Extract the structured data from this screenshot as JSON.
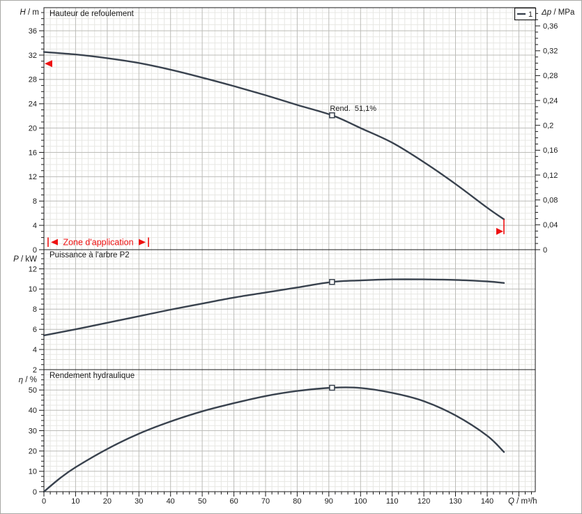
{
  "colors": {
    "curve": "#39424e",
    "grid_minor": "#e7e7e3",
    "grid_major": "#bcbcb8",
    "axis": "#1a1a1a",
    "accent_red": "#ee1111",
    "background": "#ffffff",
    "text": "#1a1a1a"
  },
  "legend": {
    "series_label": "1",
    "position": "top-right"
  },
  "x_axis": {
    "label": "Q / m³/h",
    "symbol": "Q",
    "unit": " / m³/h",
    "min": 0,
    "max": 155.2,
    "major_step": 10,
    "minor_step": 2,
    "tick_labels": [
      "0",
      "10",
      "20",
      "30",
      "40",
      "50",
      "60",
      "70",
      "80",
      "90",
      "100",
      "110",
      "120",
      "130",
      "140"
    ]
  },
  "chart_data": [
    {
      "type": "line",
      "title": "Hauteur de refoulement",
      "ylabel": "H / m",
      "ylabel_symbol": "H",
      "ylabel_unit": " / m",
      "y2label": "Δp / MPa",
      "y2label_symbol": "Δp",
      "y2label_unit": " / MPa",
      "ylim": [
        0,
        39.8
      ],
      "yticks": [
        0,
        4,
        8,
        12,
        16,
        20,
        24,
        28,
        32,
        36
      ],
      "y_minor_step": 1,
      "y2lim": [
        0,
        0.3893
      ],
      "y2tick_values": [
        0,
        0.04,
        0.08,
        0.12,
        0.16,
        0.2,
        0.24,
        0.28,
        0.32,
        0.36
      ],
      "y2tick_labels": [
        "0",
        "0,04",
        "0,08",
        "0,12",
        "0,16",
        "0,2",
        "0,24",
        "0,28",
        "0,32",
        "0,36"
      ],
      "y2_minor_step": 0.01,
      "grid": true,
      "series": [
        {
          "name": "1",
          "points": [
            [
              0,
              32.5
            ],
            [
              10,
              32.1
            ],
            [
              20,
              31.5
            ],
            [
              30,
              30.7
            ],
            [
              40,
              29.6
            ],
            [
              50,
              28.3
            ],
            [
              60,
              26.9
            ],
            [
              70,
              25.4
            ],
            [
              80,
              23.8
            ],
            [
              91,
              22.1
            ],
            [
              100,
              20.0
            ],
            [
              110,
              17.6
            ],
            [
              120,
              14.4
            ],
            [
              130,
              10.8
            ],
            [
              140,
              6.9
            ],
            [
              145.3,
              5.0
            ]
          ]
        }
      ],
      "duty_point": {
        "q": 91,
        "value": 22.1,
        "label": "Rend.  51,1%"
      },
      "application_limits": {
        "left": {
          "q": 0,
          "value": 30.6
        },
        "right": {
          "q": 145.3,
          "value_from": 5.0,
          "value_to": 2.55
        }
      },
      "zone": {
        "label": "Zone d'application",
        "q_from": 1.3,
        "q_to": 33,
        "value": 1.26
      }
    },
    {
      "type": "line",
      "title": "Puissance à l'arbre P2",
      "ylabel": "P / kW",
      "ylabel_symbol": "P",
      "ylabel_unit": " / kW",
      "ylim": [
        2,
        13.9
      ],
      "yticks": [
        2,
        4,
        6,
        8,
        10,
        12
      ],
      "y_minor_step": 0.5,
      "grid": true,
      "series": [
        {
          "name": "1",
          "points": [
            [
              0,
              5.4
            ],
            [
              10,
              6.0
            ],
            [
              20,
              6.65
            ],
            [
              30,
              7.3
            ],
            [
              40,
              7.95
            ],
            [
              50,
              8.55
            ],
            [
              60,
              9.15
            ],
            [
              70,
              9.65
            ],
            [
              80,
              10.15
            ],
            [
              91,
              10.7
            ],
            [
              100,
              10.85
            ],
            [
              110,
              10.95
            ],
            [
              120,
              10.95
            ],
            [
              130,
              10.9
            ],
            [
              140,
              10.75
            ],
            [
              145.3,
              10.6
            ]
          ]
        }
      ],
      "duty_point": {
        "q": 91,
        "value": 10.7
      }
    },
    {
      "type": "line",
      "title": "Rendement hydraulique",
      "ylabel": "η / %",
      "ylabel_symbol": "η",
      "ylabel_unit": " / %",
      "ylim": [
        0,
        60
      ],
      "yticks": [
        0,
        10,
        20,
        30,
        40,
        50
      ],
      "y_minor_step": 2.5,
      "grid": true,
      "series": [
        {
          "name": "1",
          "points": [
            [
              0,
              0
            ],
            [
              5,
              6.5
            ],
            [
              10,
              12
            ],
            [
              20,
              21
            ],
            [
              30,
              28.5
            ],
            [
              40,
              34.5
            ],
            [
              50,
              39.5
            ],
            [
              60,
              43.5
            ],
            [
              70,
              47
            ],
            [
              80,
              49.5
            ],
            [
              91,
              51.1
            ],
            [
              100,
              51.0
            ],
            [
              110,
              48.6
            ],
            [
              120,
              44.5
            ],
            [
              130,
              37.5
            ],
            [
              140,
              27.5
            ],
            [
              145.3,
              19.5
            ]
          ]
        }
      ],
      "duty_point": {
        "q": 91,
        "value": 51.1
      }
    }
  ]
}
